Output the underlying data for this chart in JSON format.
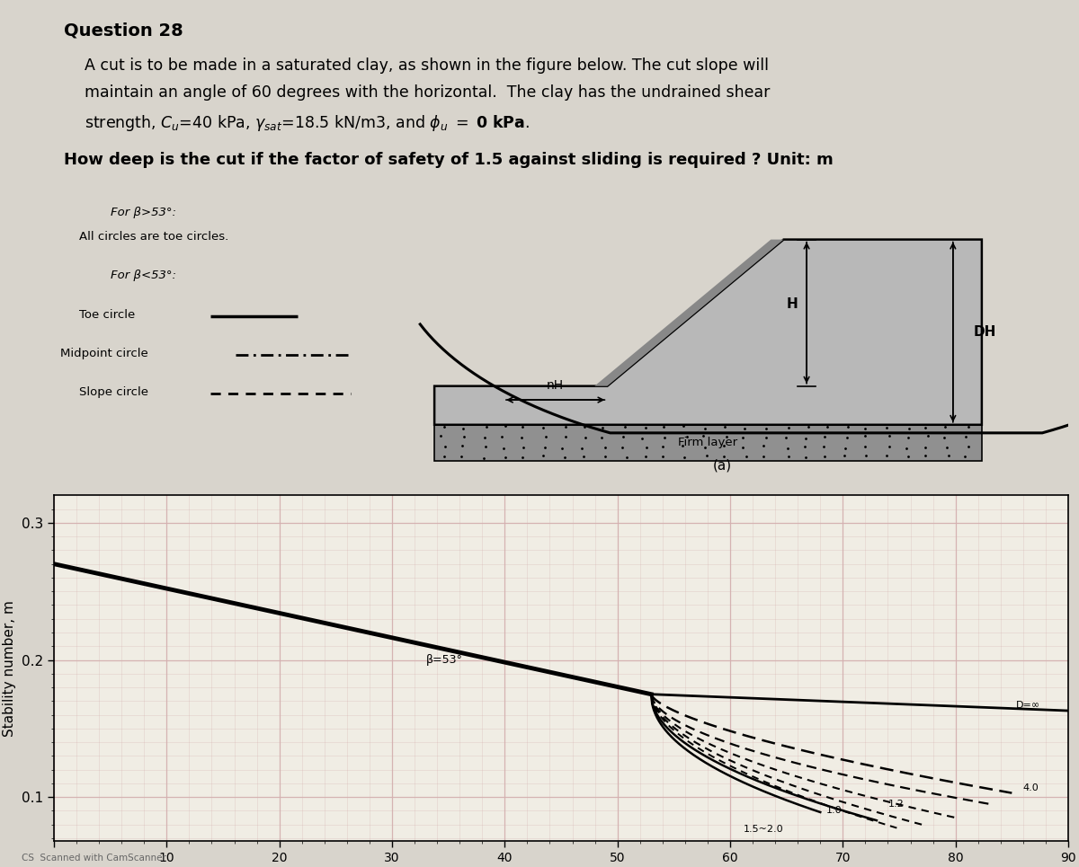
{
  "title": "Question 28",
  "line1": "A cut is to be made in a saturated clay, as shown in the figure below. The cut slope will",
  "line2": "maintain an angle of 60 degrees with the horizontal.  The clay has the undrained shear",
  "line3a": "strength, ",
  "line3b": "=40 kPa, ",
  "line3c": "=18.5 kN/m3, and ",
  "line3d": " = 0 ",
  "line3e": "kPa",
  "line3f": ".",
  "question": "How deep is the cut if the factor of safety of 1.5 against sliding is required ? Unit: m",
  "leg1a": "For β>53°:",
  "leg1b": "All circles are toe circles.",
  "leg2": "For β<53°:",
  "leg_toe": "Toe circle",
  "leg_mid": "Midpoint circle",
  "leg_slp": "Slope circle",
  "lbl_H": "H",
  "lbl_DH": "DH",
  "lbl_nH": "nH",
  "lbl_firm": "Firm layer",
  "lbl_a": "(a)",
  "lbl_beta53": "β=53°",
  "lbl_Dinf": "D=∞",
  "lbl_40": "4.0",
  "lbl_12": "1.2",
  "lbl_10": "1.0",
  "lbl_15_20": "1.5~2.0",
  "lbl_CS": "CS  Scanned with CamScanner",
  "bg": "#d8d4cc",
  "graph_bg": "#f0ede4",
  "grid_col": "#d4b0b0",
  "firm_col": "#909090",
  "ground_col": "#b8b8b8",
  "ground_dark": "#888888"
}
